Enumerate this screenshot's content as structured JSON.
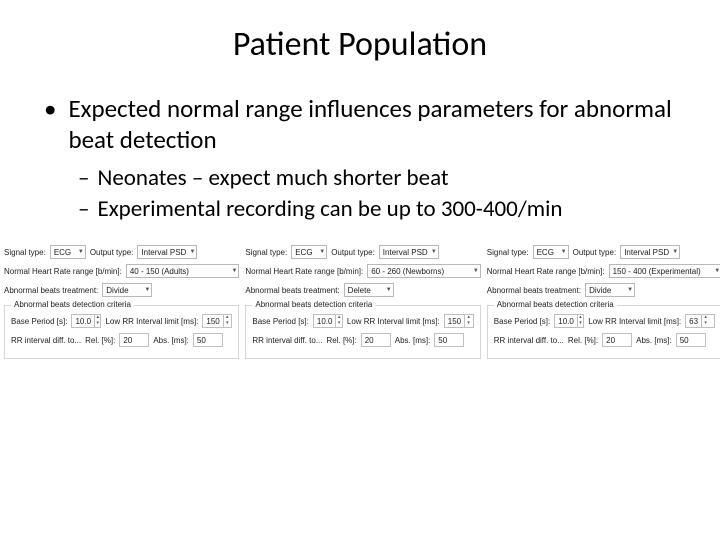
{
  "title": "Patient Population",
  "bullets": {
    "main": "Expected normal range influences parameters for abnormal beat detection",
    "sub1": "Neonates – expect much shorter beat",
    "sub2": "Experimental recording can be up to 300-400/min"
  },
  "labels": {
    "signal_type": "Signal type:",
    "output_type": "Output type:",
    "hr_range": "Normal Heart Rate range [b/min]:",
    "treatment": "Abnormal beats treatment:",
    "group": "Abnormal beats detection criteria",
    "base_period": "Base Period [s]:",
    "low_rr": "Low RR Interval limit [ms]:",
    "rr_diff": "RR interval diff. to...",
    "rel": "Rel. [%]:",
    "abs": "Abs. [ms]:"
  },
  "panels": [
    {
      "signal": "ECG",
      "output": "Interval PSD",
      "hr": "40 - 150 (Adults)",
      "treatment": "Divide",
      "base_period": "10.0",
      "low_rr": "150",
      "rel": "20",
      "abs": "50"
    },
    {
      "signal": "ECG",
      "output": "Interval PSD",
      "hr": "60 - 260 (Newborns)",
      "treatment": "Delete",
      "base_period": "10.0",
      "low_rr": "150",
      "rel": "20",
      "abs": "50"
    },
    {
      "signal": "ECG",
      "output": "Interval PSD",
      "hr": "150 - 400 (Experimental)",
      "treatment": "Divide",
      "base_period": "10.0",
      "low_rr": "63",
      "rel": "20",
      "abs": "50"
    }
  ]
}
